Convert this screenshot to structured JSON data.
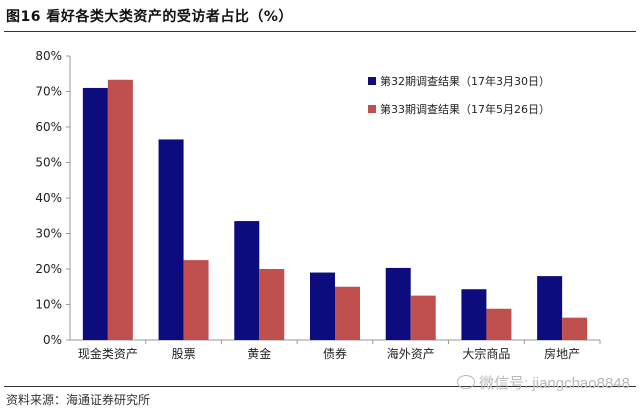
{
  "header": {
    "title": "图16 看好各类大类资产的受访者占比（%）"
  },
  "footer": {
    "source": "资料来源：海通证券研究所",
    "watermark": "微信号: jiangchao8848"
  },
  "colors": {
    "series1": "#0c0c7e",
    "series2": "#c0504d",
    "axis": "#999999"
  },
  "chart_data": {
    "type": "bar",
    "categories": [
      "现金类资产",
      "股票",
      "黄金",
      "债券",
      "海外资产",
      "大宗商品",
      "房地产"
    ],
    "series": [
      {
        "name": "第32期调查结果（17年3月30日）",
        "values": [
          71,
          56.5,
          33.5,
          19,
          20.3,
          14.3,
          18
        ]
      },
      {
        "name": "第33期调查结果（17年5月26日）",
        "values": [
          73.3,
          22.5,
          20,
          15,
          12.5,
          8.8,
          6.3
        ]
      }
    ],
    "ylim": [
      0,
      80
    ],
    "yticks": [
      "0%",
      "10%",
      "20%",
      "30%",
      "40%",
      "50%",
      "60%",
      "70%",
      "80%"
    ],
    "legend": "top-right",
    "grid": false
  }
}
